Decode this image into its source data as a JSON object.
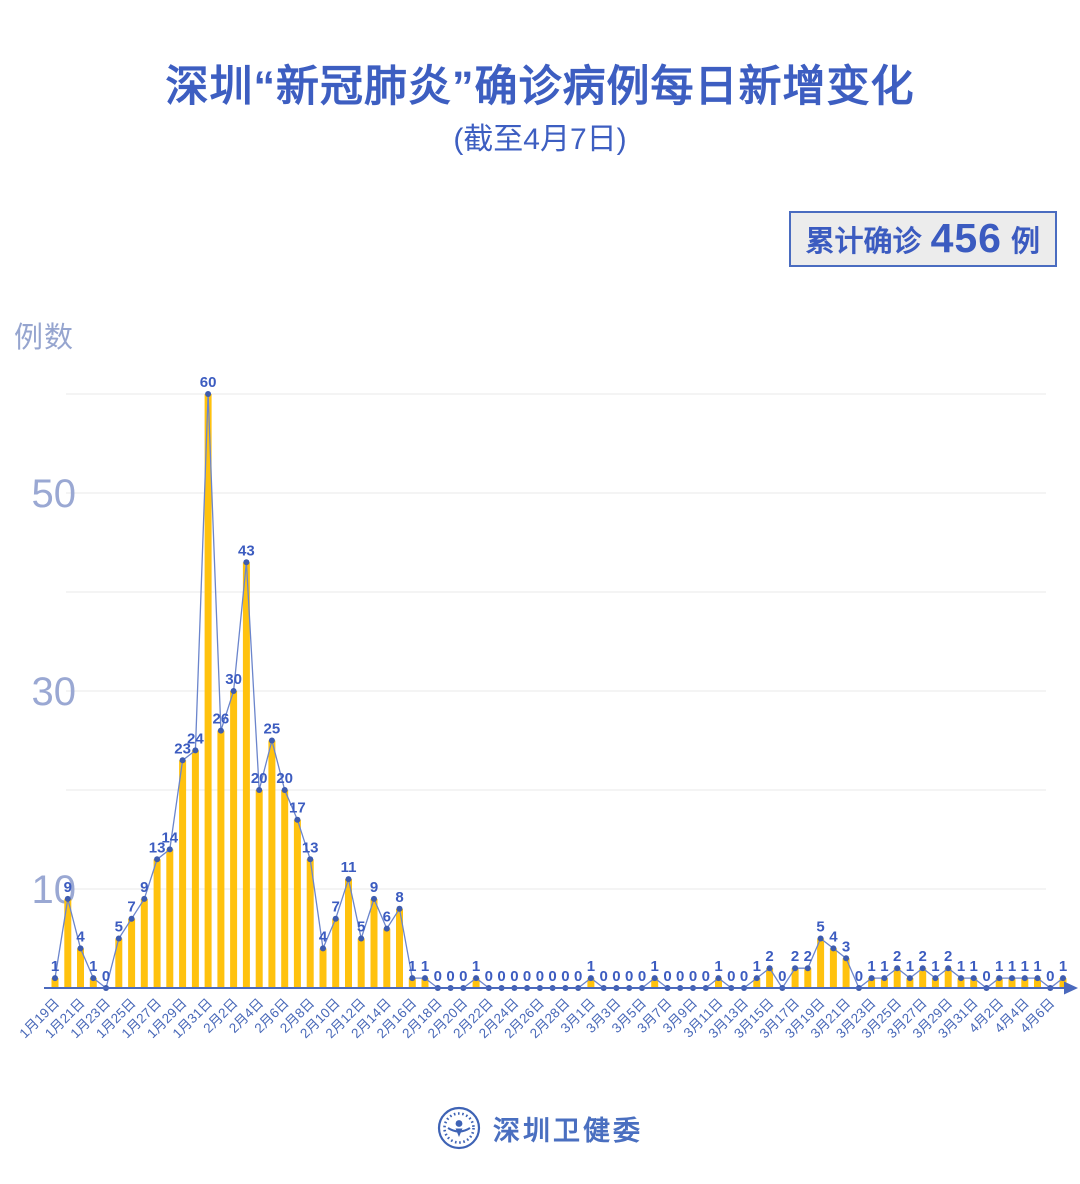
{
  "page": {
    "badge": {
      "prefix": "累计确诊",
      "value": "456",
      "unit": "例"
    },
    "footer": {
      "org": "深圳卫健委",
      "logo_icon": "shenzhen-health-commission-emblem"
    }
  },
  "chart_data": {
    "type": "bar",
    "subtype": "bar-with-line-and-point-labels",
    "title": "深圳“新冠肺炎”确诊病例每日新增变化",
    "subtitle": "(截至4月7日)",
    "ylabel": "例数",
    "xlabel": "",
    "ylim": [
      0,
      62
    ],
    "grid": true,
    "gridlines": [
      10,
      20,
      30,
      40,
      50,
      60
    ],
    "ytick_labels": [
      50,
      30,
      10
    ],
    "legend": false,
    "total_label": "累计确诊 456 例",
    "total": 456,
    "x_tick_every": 2,
    "x_tick_labels": [
      "1月19日",
      "1月21日",
      "1月23日",
      "1月25日",
      "1月27日",
      "1月29日",
      "1月31日",
      "2月2日",
      "2月4日",
      "2月6日",
      "2月8日",
      "2月10日",
      "2月12日",
      "2月14日",
      "2月16日",
      "2月18日",
      "2月20日",
      "2月22日",
      "2月24日",
      "2月26日",
      "2月28日",
      "3月1日",
      "3月3日",
      "3月5日",
      "3月7日",
      "3月9日",
      "3月11日",
      "3月13日",
      "3月15日",
      "3月17日",
      "3月19日",
      "3月21日",
      "3月23日",
      "3月25日",
      "3月27日",
      "3月29日",
      "3月31日",
      "4月2日",
      "4月4日",
      "4月6日"
    ],
    "values": [
      1,
      9,
      4,
      1,
      0,
      5,
      7,
      9,
      13,
      14,
      23,
      24,
      60,
      26,
      30,
      43,
      20,
      25,
      20,
      17,
      13,
      4,
      7,
      11,
      5,
      9,
      6,
      8,
      1,
      1,
      0,
      0,
      0,
      1,
      0,
      0,
      0,
      0,
      0,
      0,
      0,
      0,
      1,
      0,
      0,
      0,
      0,
      1,
      0,
      0,
      0,
      0,
      1,
      0,
      0,
      1,
      2,
      0,
      2,
      2,
      5,
      4,
      3,
      0,
      1,
      1,
      2,
      1,
      2,
      1,
      2,
      1,
      1,
      0,
      1,
      1,
      1,
      1,
      0,
      1
    ],
    "colors": {
      "bar": "#FFC20E",
      "line": "#6B85CC",
      "dot": "#3E5CAE",
      "value_label": "#3C5CC0",
      "axis": "#4A69BD",
      "x_tick_text": "#4868B8",
      "y_tick_text": "#9AA8D3",
      "grid_line": "#E8E8E8",
      "accent_blue": "#3D5EC1",
      "badge_bg": "#ECECEC"
    }
  }
}
